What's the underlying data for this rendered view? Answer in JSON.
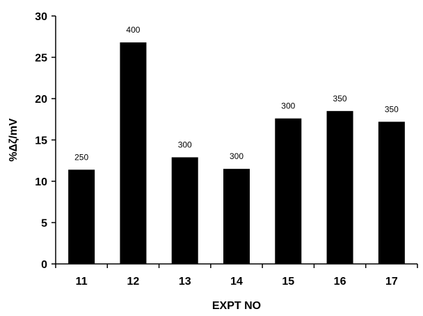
{
  "chart_data": {
    "type": "bar",
    "categories": [
      "11",
      "12",
      "13",
      "14",
      "15",
      "16",
      "17"
    ],
    "values": [
      11.4,
      26.8,
      12.9,
      11.5,
      17.6,
      18.5,
      17.2
    ],
    "data_labels": [
      "250",
      "400",
      "300",
      "300",
      "300",
      "350",
      "350"
    ],
    "xlabel": "EXPT NO",
    "ylabel": "%Δζ/mV",
    "ylim": [
      0,
      30
    ],
    "yticks": [
      0,
      5,
      10,
      15,
      20,
      25,
      30
    ],
    "grid": false,
    "bar_color": "#000000"
  }
}
